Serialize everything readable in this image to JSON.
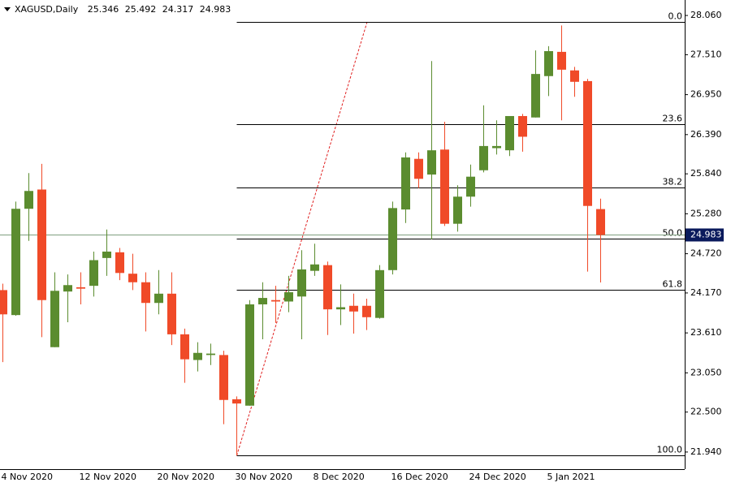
{
  "chart_data": {
    "type": "candlestick",
    "title": "XAGUSD,Daily",
    "categories": [
      "4 Nov 2020",
      null,
      null,
      null,
      null,
      null,
      "12 Nov 2020",
      null,
      null,
      null,
      null,
      null,
      "20 Nov 2020",
      null,
      null,
      null,
      null,
      null,
      "30 Nov 2020",
      null,
      null,
      null,
      null,
      null,
      "8 Dec 2020",
      null,
      null,
      null,
      null,
      null,
      "16 Dec 2020",
      null,
      null,
      null,
      null,
      null,
      "24 Dec 2020",
      null,
      null,
      null,
      null,
      null,
      "5 Jan 2021",
      null,
      null,
      null,
      null
    ],
    "open": [
      24.21,
      23.86,
      25.35,
      25.62,
      23.41,
      24.19,
      24.25,
      24.27,
      24.66,
      24.74,
      24.44,
      24.32,
      24.03,
      24.16,
      23.59,
      23.23,
      23.3,
      23.3,
      22.68,
      22.59,
      24.01,
      24.07,
      24.05,
      24.12,
      24.48,
      24.56,
      23.94,
      23.99,
      23.99,
      23.82,
      24.49,
      25.34,
      26.05,
      25.83,
      26.18,
      25.14,
      25.52,
      25.89,
      26.2,
      26.17,
      26.65,
      26.63,
      27.21,
      27.55,
      27.29,
      27.14,
      25.346
    ],
    "high": [
      24.3,
      25.45,
      25.85,
      25.98,
      24.46,
      24.43,
      24.46,
      24.75,
      25.06,
      24.8,
      24.72,
      24.46,
      24.49,
      24.46,
      23.67,
      23.48,
      23.46,
      23.36,
      22.72,
      24.07,
      24.32,
      24.27,
      24.41,
      24.77,
      24.86,
      24.61,
      24.29,
      24.16,
      24.09,
      24.56,
      25.45,
      26.14,
      26.14,
      27.42,
      26.57,
      25.68,
      25.97,
      26.8,
      26.59,
      26.65,
      26.68,
      27.57,
      27.63,
      27.92,
      27.34,
      27.17,
      25.492
    ],
    "low": [
      23.2,
      23.85,
      24.9,
      23.55,
      23.41,
      23.76,
      24.01,
      24.12,
      24.41,
      24.35,
      24.21,
      23.63,
      23.87,
      23.44,
      22.91,
      23.07,
      23.16,
      22.33,
      21.89,
      22.59,
      23.52,
      23.75,
      23.9,
      23.52,
      24.41,
      23.58,
      23.72,
      23.6,
      23.65,
      23.81,
      24.43,
      25.15,
      25.64,
      24.92,
      25.11,
      25.03,
      25.38,
      25.86,
      26.11,
      26.09,
      26.15,
      26.63,
      26.93,
      26.59,
      26.92,
      24.47,
      24.317
    ],
    "close": [
      23.87,
      25.35,
      25.6,
      24.07,
      24.2,
      24.28,
      24.23,
      24.63,
      24.75,
      24.45,
      24.32,
      24.03,
      24.16,
      23.59,
      23.24,
      23.33,
      23.32,
      22.67,
      22.62,
      24.01,
      24.1,
      24.05,
      24.18,
      24.5,
      24.57,
      23.94,
      23.97,
      23.91,
      23.83,
      24.49,
      25.36,
      26.07,
      25.77,
      26.17,
      25.14,
      25.52,
      25.8,
      26.23,
      26.23,
      26.65,
      26.36,
      27.24,
      27.56,
      27.3,
      27.13,
      25.39,
      24.983
    ],
    "up_color": "#5b8c2f",
    "down_color": "#f04a28",
    "ylim": [
      21.7,
      28.22
    ],
    "yticks": [
      {
        "value": 28.06,
        "label": "28.060"
      },
      {
        "value": 27.51,
        "label": "27.510"
      },
      {
        "value": 26.95,
        "label": "26.950"
      },
      {
        "value": 26.39,
        "label": "26.390"
      },
      {
        "value": 25.84,
        "label": "25.840"
      },
      {
        "value": 25.28,
        "label": "25.280"
      },
      {
        "value": 24.72,
        "label": "24.720"
      },
      {
        "value": 24.17,
        "label": "24.170"
      },
      {
        "value": 23.61,
        "label": "23.610"
      },
      {
        "value": 23.05,
        "label": "23.050"
      },
      {
        "value": 22.5,
        "label": "22.500"
      },
      {
        "value": 21.94,
        "label": "21.940"
      }
    ],
    "fib_levels": [
      {
        "label": "0.0",
        "value": 27.97
      },
      {
        "label": "23.6",
        "value": 26.535
      },
      {
        "label": "38.2",
        "value": 25.647
      },
      {
        "label": "50.0",
        "value": 24.93
      },
      {
        "label": "61.8",
        "value": 24.213
      },
      {
        "label": "100.0",
        "value": 21.89
      }
    ]
  }
}
